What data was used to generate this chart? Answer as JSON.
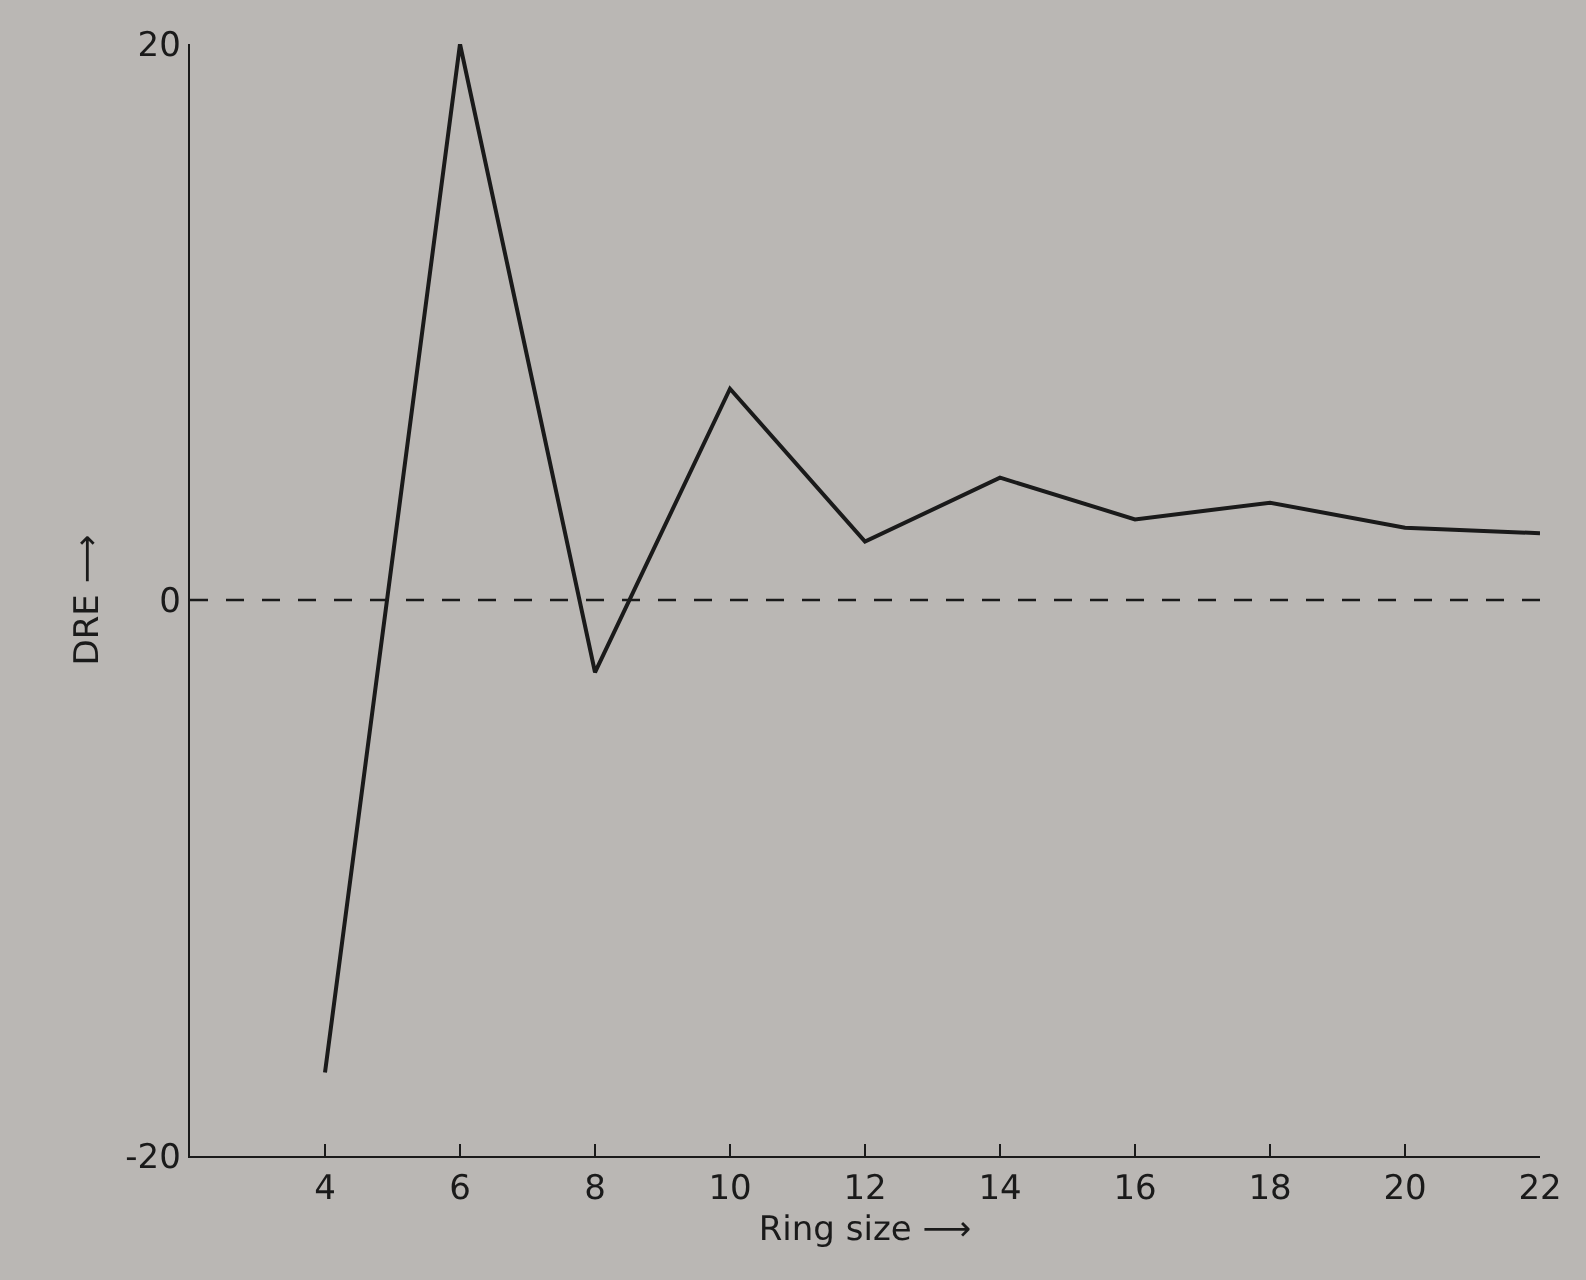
{
  "chart_data": {
    "type": "line",
    "xlabel": "Ring size ⟶",
    "ylabel": "DRE ⟶",
    "x": [
      4,
      6,
      8,
      10,
      12,
      14,
      16,
      18,
      20,
      22
    ],
    "series": [
      {
        "color": "#1a1a1a",
        "values": [
          -17,
          20,
          -2.6,
          7.6,
          2.1,
          4.4,
          2.9,
          3.5,
          2.6,
          2.4
        ]
      }
    ],
    "xlim": [
      2,
      22
    ],
    "xticks": [
      4,
      6,
      8,
      10,
      12,
      14,
      16,
      18,
      20,
      22
    ],
    "ylim": [
      -20,
      20
    ],
    "yticks": [
      -20,
      0,
      20
    ],
    "ref_lines": [
      {
        "axis": "y",
        "value": 0,
        "color": "#1a1a1a",
        "line_style": "dashed"
      }
    ],
    "grid": false,
    "marker": "none",
    "line_style": "solid"
  }
}
